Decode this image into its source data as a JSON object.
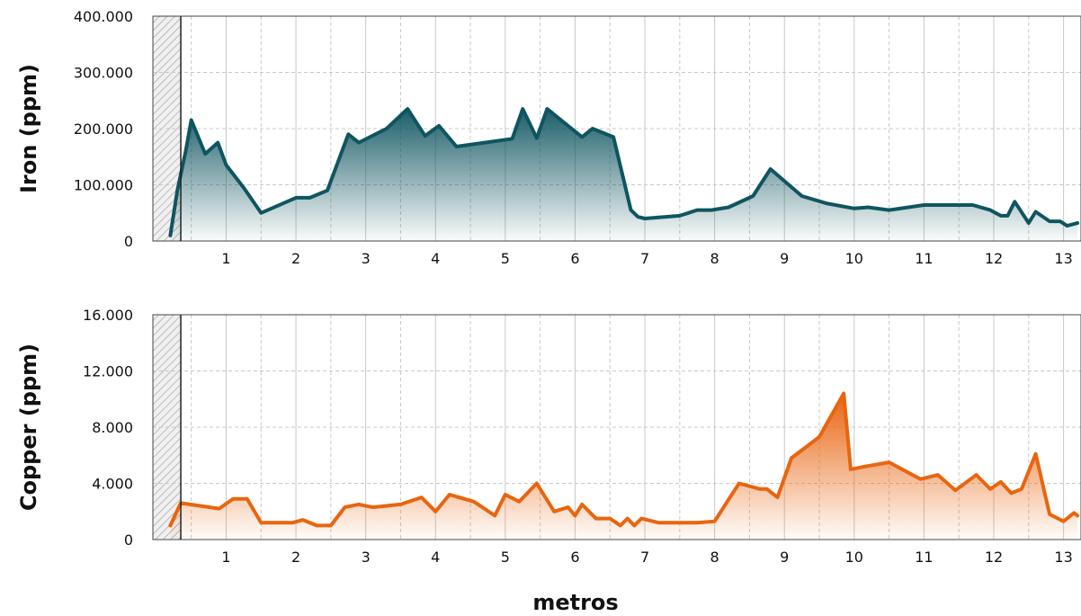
{
  "chart_data": [
    {
      "type": "area",
      "ylabel": "Iron (ppm)",
      "xlabel": "",
      "ylim": [
        0,
        400000
      ],
      "xlim": [
        -0.05,
        13.25
      ],
      "y_ticks": [
        0,
        100000,
        200000,
        300000,
        400000
      ],
      "y_tick_labels": [
        "0",
        "100.000",
        "200.000",
        "300.000",
        "400.000"
      ],
      "x_ticks": [
        1,
        2,
        3,
        4,
        5,
        6,
        7,
        8,
        9,
        10,
        11,
        12,
        13
      ],
      "x_tick_labels": [
        "1",
        "2",
        "3",
        "4",
        "5",
        "6",
        "7",
        "8",
        "9",
        "10",
        "11",
        "12",
        "13"
      ],
      "grid": true,
      "hatched_region_end": 0.35,
      "color": "#0f5560",
      "series": [
        {
          "x": [
            0.2,
            0.3,
            0.42,
            0.5,
            0.7,
            0.88,
            1.0,
            1.25,
            1.5,
            2.0,
            2.2,
            2.45,
            2.75,
            2.9,
            3.3,
            3.6,
            3.85,
            4.05,
            4.3,
            5.1,
            5.25,
            5.45,
            5.6,
            5.85,
            6.1,
            6.25,
            6.55,
            6.8,
            6.9,
            7.0,
            7.5,
            7.75,
            7.95,
            8.2,
            8.55,
            8.8,
            9.25,
            9.6,
            10.0,
            10.2,
            10.5,
            11.0,
            11.4,
            11.7,
            11.95,
            12.1,
            12.2,
            12.3,
            12.5,
            12.6,
            12.8,
            12.95,
            13.05,
            13.2
          ],
          "y": [
            10000,
            90000,
            160000,
            215000,
            155000,
            175000,
            135000,
            95000,
            50000,
            77000,
            77000,
            90000,
            190000,
            175000,
            200000,
            235000,
            187000,
            205000,
            168000,
            182000,
            235000,
            183000,
            235000,
            210000,
            185000,
            200000,
            185000,
            55000,
            43000,
            40000,
            45000,
            55000,
            55000,
            60000,
            80000,
            128000,
            80000,
            67000,
            58000,
            60000,
            55000,
            64000,
            64000,
            64000,
            55000,
            45000,
            45000,
            70000,
            32000,
            52000,
            35000,
            35000,
            27000,
            32000
          ]
        }
      ]
    },
    {
      "type": "area",
      "ylabel": "Copper (ppm)",
      "xlabel": "metros",
      "ylim": [
        0,
        16000
      ],
      "xlim": [
        -0.05,
        13.25
      ],
      "y_ticks": [
        0,
        4000,
        8000,
        12000,
        16000
      ],
      "y_tick_labels": [
        "0",
        "4.000",
        "8.000",
        "12.000",
        "16.000"
      ],
      "x_ticks": [
        1,
        2,
        3,
        4,
        5,
        6,
        7,
        8,
        9,
        10,
        11,
        12,
        13
      ],
      "x_tick_labels": [
        "1",
        "2",
        "3",
        "4",
        "5",
        "6",
        "7",
        "8",
        "9",
        "10",
        "11",
        "12",
        "13"
      ],
      "grid": true,
      "hatched_region_end": 0.35,
      "color": "#e8650f",
      "series": [
        {
          "x": [
            0.2,
            0.35,
            0.9,
            1.1,
            1.3,
            1.5,
            1.75,
            1.95,
            2.1,
            2.3,
            2.5,
            2.7,
            2.9,
            3.1,
            3.5,
            3.8,
            4.0,
            4.2,
            4.55,
            4.85,
            5.0,
            5.2,
            5.45,
            5.7,
            5.9,
            6.0,
            6.1,
            6.3,
            6.5,
            6.65,
            6.75,
            6.85,
            6.95,
            7.2,
            7.45,
            7.75,
            8.0,
            8.35,
            8.65,
            8.75,
            8.9,
            9.1,
            9.5,
            9.85,
            9.95,
            10.15,
            10.5,
            10.95,
            11.2,
            11.45,
            11.75,
            11.95,
            12.1,
            12.25,
            12.4,
            12.6,
            12.8,
            13.0,
            13.15,
            13.2
          ],
          "y": [
            1000,
            2600,
            2200,
            2900,
            2900,
            1200,
            1200,
            1200,
            1400,
            1000,
            1000,
            2300,
            2500,
            2300,
            2500,
            3000,
            2000,
            3200,
            2700,
            1700,
            3200,
            2700,
            4000,
            2000,
            2300,
            1700,
            2500,
            1500,
            1500,
            1000,
            1500,
            1000,
            1500,
            1200,
            1200,
            1200,
            1300,
            4000,
            3600,
            3600,
            3000,
            5800,
            7300,
            10400,
            5000,
            5200,
            5500,
            4300,
            4600,
            3500,
            4600,
            3600,
            4100,
            3300,
            3600,
            6100,
            1800,
            1300,
            1900,
            1700
          ]
        }
      ]
    }
  ]
}
